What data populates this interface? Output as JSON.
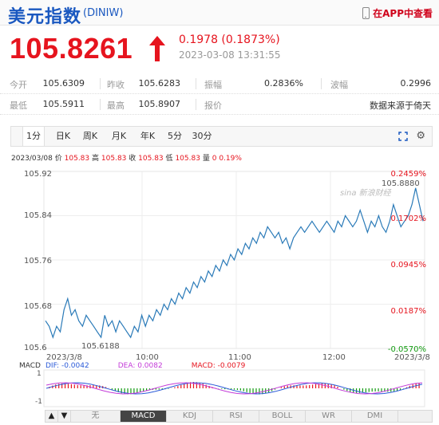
{
  "header": {
    "title": "美元指数",
    "symbol": "(DINIW)",
    "app_link": "在APP中查看"
  },
  "quote": {
    "price": "105.8261",
    "change": "0.1978 (0.1873%)",
    "datetime": "2023-03-08 13:31:55"
  },
  "stats": {
    "row1": [
      {
        "label": "今开",
        "value": "105.6309"
      },
      {
        "label": "昨收",
        "value": "105.6283"
      },
      {
        "label": "振幅",
        "value": "0.2836%"
      },
      {
        "label": "波幅",
        "value": "0.2996"
      }
    ],
    "row2": [
      {
        "label": "最低",
        "value": "105.5911"
      },
      {
        "label": "最高",
        "value": "105.8907"
      },
      {
        "label": "报价",
        "value": "数据来源于倚天"
      }
    ]
  },
  "tabs": [
    "1分",
    "日K",
    "周K",
    "月K",
    "年K",
    "5分",
    "30分"
  ],
  "info_line": {
    "date": "2023/03/08",
    "items": [
      {
        "label": "价",
        "value": "105.83"
      },
      {
        "label": "高",
        "value": "105.83"
      },
      {
        "label": "收",
        "value": "105.83"
      },
      {
        "label": "低",
        "value": "105.83"
      },
      {
        "label": "量",
        "value": "0"
      }
    ],
    "pct": "0.19%"
  },
  "chart_data": {
    "type": "line",
    "y_ticks": [
      "105.92",
      "105.84",
      "105.76",
      "105.68",
      "105.6"
    ],
    "pct_ticks": [
      "0.2459%",
      "0.1702%",
      "0.0945%",
      "0.0187%",
      "-0.0570%"
    ],
    "x_ticks": [
      "2023/3/8",
      "10:00",
      "11:00",
      "12:00",
      "2023/3/8"
    ],
    "ylim": [
      105.6,
      105.92
    ],
    "annotations": {
      "max": "105.8880",
      "min": "105.6188"
    },
    "watermark": "sina 新浪财经",
    "series": [
      {
        "values": [
          105.65,
          105.64,
          105.62,
          105.64,
          105.63,
          105.67,
          105.69,
          105.66,
          105.67,
          105.65,
          105.64,
          105.66,
          105.65,
          105.64,
          105.63,
          105.62,
          105.66,
          105.64,
          105.65,
          105.63,
          105.65,
          105.64,
          105.63,
          105.62,
          105.64,
          105.63,
          105.66,
          105.64,
          105.66,
          105.65,
          105.67,
          105.66,
          105.68,
          105.67,
          105.69,
          105.68,
          105.7,
          105.69,
          105.71,
          105.7,
          105.72,
          105.71,
          105.73,
          105.72,
          105.74,
          105.73,
          105.75,
          105.74,
          105.76,
          105.75,
          105.77,
          105.76,
          105.78,
          105.77,
          105.79,
          105.78,
          105.8,
          105.79,
          105.81,
          105.8,
          105.82,
          105.81,
          105.8,
          105.81,
          105.79,
          105.8,
          105.78,
          105.8,
          105.81,
          105.82,
          105.81,
          105.82,
          105.83,
          105.82,
          105.81,
          105.82,
          105.83,
          105.82,
          105.81,
          105.83,
          105.82,
          105.84,
          105.83,
          105.82,
          105.83,
          105.85,
          105.83,
          105.81,
          105.83,
          105.82,
          105.84,
          105.82,
          105.81,
          105.83,
          105.86,
          105.84,
          105.82,
          105.83,
          105.84,
          105.86,
          105.89,
          105.86,
          105.83
        ]
      }
    ],
    "macd": {
      "dif": "-0.0042",
      "dea": "0.0082",
      "macd": "-0.0079",
      "y_ticks": [
        "1",
        "-1"
      ]
    },
    "colors": {
      "line": "#2a7ab8",
      "dif": "#2a5ad8",
      "dea": "#c33ad8",
      "up": "#e6141e",
      "down": "#129b10"
    }
  },
  "indicators": [
    "无",
    "MACD",
    "KDJ",
    "RSI",
    "BOLL",
    "WR",
    "DMI"
  ]
}
